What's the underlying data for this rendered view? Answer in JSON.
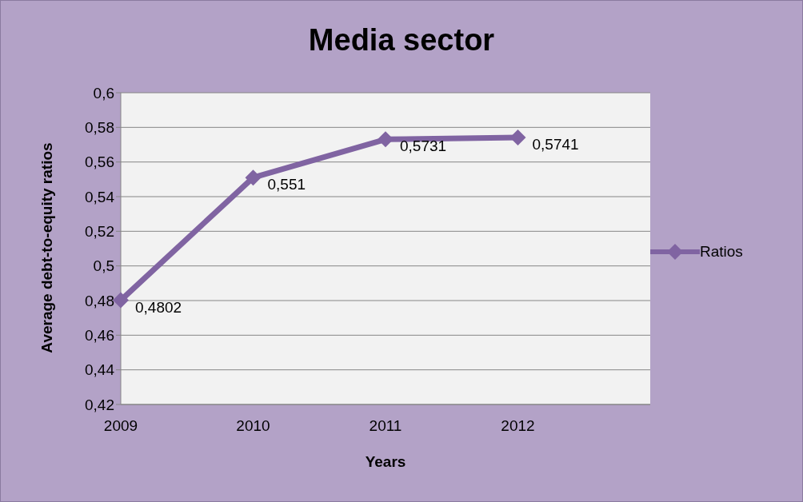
{
  "chart_data": {
    "type": "line",
    "title": "Media sector",
    "xlabel": "Years",
    "ylabel": "Average debt-to-equity ratios",
    "categories": [
      "2009",
      "2010",
      "2011",
      "2012",
      null
    ],
    "series": [
      {
        "name": "Ratios",
        "color": "#8064a2",
        "values": [
          0.4802,
          0.551,
          0.5731,
          0.5741,
          null
        ],
        "value_labels": [
          "0,4802",
          "0,551",
          "0,5731",
          "0,5741",
          null
        ]
      }
    ],
    "ylim": [
      0.42,
      0.6
    ],
    "yticks": [
      {
        "value": 0.42,
        "label": "0,42"
      },
      {
        "value": 0.44,
        "label": "0,44"
      },
      {
        "value": 0.46,
        "label": "0,46"
      },
      {
        "value": 0.48,
        "label": "0,48"
      },
      {
        "value": 0.5,
        "label": "0,5"
      },
      {
        "value": 0.52,
        "label": "0,52"
      },
      {
        "value": 0.54,
        "label": "0,54"
      },
      {
        "value": 0.56,
        "label": "0,56"
      },
      {
        "value": 0.58,
        "label": "0,58"
      },
      {
        "value": 0.6,
        "label": "0,6"
      }
    ],
    "grid": "y",
    "legend": "right",
    "marker": "diamond",
    "line_style": "solid"
  }
}
